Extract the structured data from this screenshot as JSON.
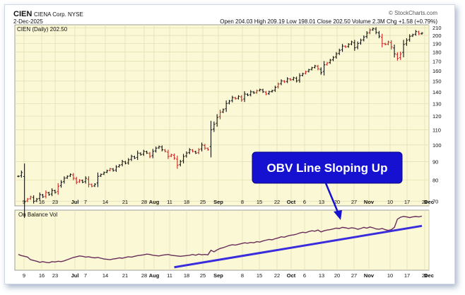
{
  "header": {
    "symbol": "CIEN",
    "company": "CIENA Corp. NYSE",
    "date": "2-Dec-2025",
    "source": "© StockCharts.com",
    "ohlc": "Open 204.03  High 209.19  Low 198.01  Close 202.50  Volume 2.3M  Chg +1.58 (+0.79%)"
  },
  "price_panel": {
    "label": "CIEN (Daily) 202.50"
  },
  "obv_panel": {
    "label": "On Balance Vol"
  },
  "callout": {
    "text": "OBV Line Sloping Up"
  },
  "colors": {
    "panel_bg": "#fbf8d6",
    "up": "#111111",
    "down": "#cc2222",
    "obv": "#6a2d5a",
    "trendline": "#3a2ddc",
    "callout_bg": "#1610d0"
  },
  "chart_data": [
    {
      "type": "ohlc",
      "title": "CIEN (Daily) 202.50",
      "x_tick_labels": [
        "9",
        "16",
        "23",
        "Jul",
        "7",
        "14",
        "21",
        "28",
        "Aug",
        "11",
        "18",
        "25",
        "Sep",
        "8",
        "15",
        "22",
        "Oct",
        "6",
        "13",
        "20",
        "27",
        "Nov",
        "10",
        "17",
        "24",
        "Dec"
      ],
      "y_tick_labels": [
        "70",
        "80",
        "90",
        "100",
        "110",
        "120",
        "130",
        "140",
        "150",
        "160",
        "170",
        "180",
        "190",
        "200",
        "210"
      ],
      "ylim": [
        68,
        214
      ],
      "y_scale": "log",
      "closes": [
        82,
        84,
        70,
        71,
        72,
        70,
        71,
        73,
        72,
        74,
        73,
        75,
        74,
        77,
        79,
        81,
        82,
        83,
        81,
        79,
        80,
        79,
        81,
        78,
        77,
        78,
        82,
        83,
        84,
        85,
        86,
        85,
        87,
        88,
        90,
        89,
        91,
        93,
        92,
        95,
        94,
        96,
        95,
        93,
        96,
        98,
        99,
        97,
        96,
        93,
        94,
        92,
        88,
        90,
        93,
        95,
        97,
        96,
        95,
        97,
        100,
        98,
        97,
        110,
        114,
        119,
        123,
        125,
        130,
        132,
        135,
        134,
        136,
        133,
        138,
        137,
        140,
        139,
        141,
        142,
        140,
        138,
        140,
        141,
        144,
        147,
        150,
        149,
        152,
        151,
        153,
        150,
        155,
        157,
        159,
        161,
        163,
        165,
        162,
        158,
        166,
        168,
        171,
        174,
        178,
        182,
        187,
        186,
        189,
        192,
        185,
        190,
        194,
        198,
        203,
        207,
        209,
        204,
        199,
        190,
        189,
        192,
        186,
        178,
        173,
        178,
        189,
        194,
        199,
        201,
        205,
        202,
        203
      ],
      "down_bars": [
        3,
        4,
        9,
        13,
        18,
        19,
        20,
        23,
        24,
        30,
        43,
        48,
        49,
        50,
        51,
        52,
        57,
        59,
        61,
        62,
        66,
        71,
        73,
        78,
        81,
        85,
        87,
        89,
        94,
        98,
        101,
        107,
        115,
        119,
        120,
        121,
        122,
        124,
        125,
        131
      ]
    },
    {
      "type": "line",
      "title": "On Balance Vol",
      "x_tick_labels": [
        "9",
        "16",
        "23",
        "Jul",
        "7",
        "14",
        "21",
        "28",
        "Aug",
        "11",
        "18",
        "25",
        "Sep",
        "8",
        "15",
        "22",
        "Oct",
        "6",
        "13",
        "20",
        "27",
        "Nov",
        "10",
        "17",
        "24",
        "Dec"
      ],
      "series": [
        {
          "values": [
            4.2,
            3.9,
            3.7,
            3.5,
            2.8,
            2.6,
            2.4,
            2.1,
            2.3,
            2.1,
            2.0,
            2.3,
            2.2,
            2.4,
            2.3,
            2.5,
            2.8,
            3.1,
            3.4,
            3.6,
            3.8,
            3.7,
            3.5,
            3.6,
            3.4,
            3.3,
            3.4,
            3.2,
            3.0,
            2.9,
            2.8,
            3.0,
            3.1,
            3.3,
            3.2,
            3.4,
            3.6,
            3.5,
            3.7,
            3.9,
            4.0,
            4.1,
            4.3,
            4.2,
            4.0,
            3.9,
            3.8,
            4.0,
            4.1,
            4.2,
            4.0,
            3.9,
            3.8,
            3.7,
            3.8,
            3.9,
            4.0,
            4.2,
            4.0,
            4.3,
            4.1,
            4.2,
            4.1,
            5.3,
            4.9,
            5.4,
            5.8,
            6.0,
            6.3,
            6.6,
            6.8,
            6.7,
            6.9,
            7.1,
            7.3,
            7.2,
            7.4,
            7.3,
            7.6,
            7.5,
            7.8,
            8.0,
            8.2,
            8.1,
            8.4,
            8.6,
            8.9,
            8.8,
            9.1,
            9.3,
            9.4,
            9.6,
            9.9,
            10.1,
            10.0,
            10.3,
            10.5,
            10.4,
            10.7,
            10.2,
            10.5,
            10.7,
            10.8,
            11.0,
            11.2,
            11.1,
            11.4,
            11.3,
            11.1,
            11.3,
            11.2,
            10.9,
            11.1,
            11.4,
            11.2,
            11.5,
            11.3,
            11.0,
            10.9,
            11.1,
            10.8,
            10.6,
            10.8,
            11.4,
            13.6,
            14.1,
            14.3,
            14.2,
            14.0,
            14.2,
            14.3,
            14.2,
            14.4
          ]
        }
      ],
      "trendline": {
        "from": [
          51,
          0.8
        ],
        "to": [
          132,
          11.8
        ]
      },
      "ylim": [
        0,
        16
      ]
    }
  ]
}
